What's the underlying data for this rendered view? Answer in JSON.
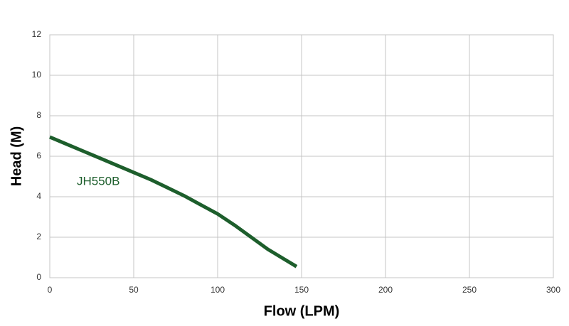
{
  "chart_data": {
    "type": "line",
    "x_label": "Flow (LPM)",
    "y_label": "Head (M)",
    "x": [
      0,
      10,
      20,
      30,
      40,
      50,
      60,
      70,
      80,
      90,
      100,
      110,
      120,
      130,
      140,
      147
    ],
    "series": [
      {
        "name": "JH550B",
        "color": "#1d5e2c",
        "values": [
          6.95,
          6.6,
          6.25,
          5.9,
          5.55,
          5.2,
          4.85,
          4.45,
          4.05,
          3.6,
          3.15,
          2.6,
          2.0,
          1.4,
          0.9,
          0.55
        ]
      }
    ],
    "xlim": [
      0,
      300
    ],
    "xticks": [
      0,
      50,
      100,
      150,
      200,
      250,
      300
    ],
    "ylim": [
      0,
      12
    ],
    "yticks": [
      0,
      2,
      4,
      6,
      8,
      10,
      12
    ],
    "grid": true
  }
}
